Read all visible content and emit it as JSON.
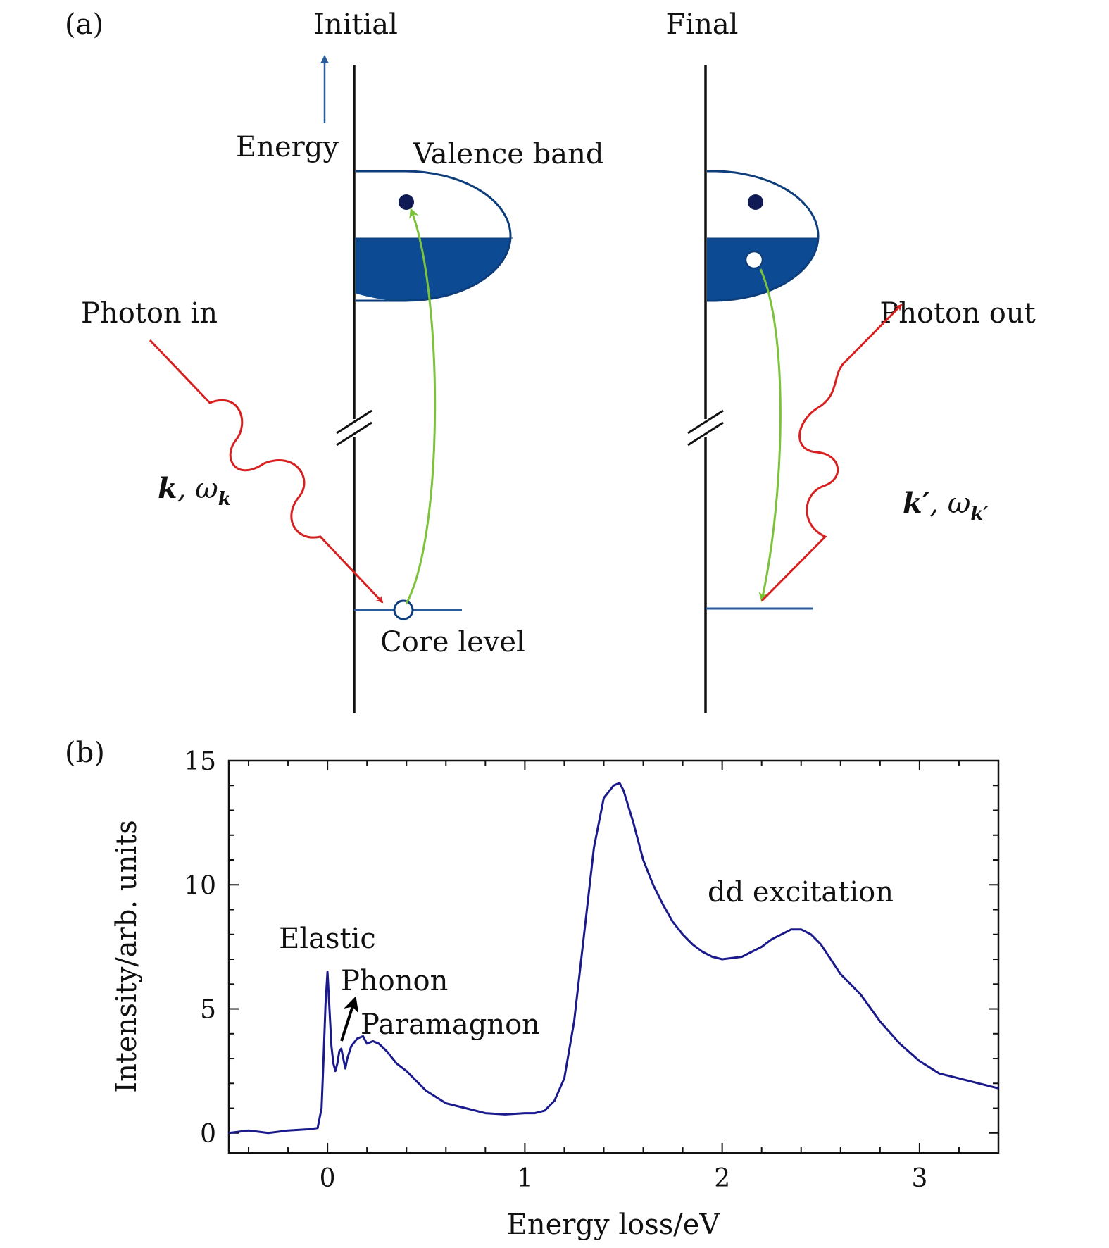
{
  "panel_a": {
    "panel_label": "(a)",
    "initial_title": "Initial",
    "final_title": "Final",
    "energy_label": "Energy",
    "valence_band_label": "Valence band",
    "core_level_label": "Core level",
    "photon_in_label": "Photon in",
    "photon_out_label": "Photon out",
    "k_in_bold": "k",
    "k_in_sep": ", ω",
    "k_in_sub": "k",
    "k_out_bold": "k′",
    "k_out_sep": ", ω",
    "k_out_sub": "k′",
    "colors": {
      "band": "#0d4a94",
      "photon": "#d82020",
      "transition": "#7cc23a",
      "axis": "#111111"
    }
  },
  "panel_b": {
    "panel_label": "(b)",
    "annotations": {
      "elastic": "Elastic",
      "phonon": "Phonon",
      "paramagnon": "Paramagnon",
      "dd": "dd excitation"
    },
    "chart_data": {
      "type": "line",
      "xlabel": "Energy loss/eV",
      "ylabel": "Intensity/arb. units",
      "xlim": [
        -0.5,
        3.4
      ],
      "ylim": [
        -0.8,
        15
      ],
      "xticks": [
        0,
        1,
        2,
        3
      ],
      "yticks": [
        0,
        5,
        10,
        15
      ],
      "grid": false,
      "line_color": "#1a1a8c",
      "series": [
        {
          "x": [
            -0.5,
            -0.4,
            -0.3,
            -0.2,
            -0.1,
            -0.05,
            -0.03,
            -0.02,
            -0.01,
            0.0,
            0.01,
            0.02,
            0.03,
            0.04,
            0.05,
            0.06,
            0.07,
            0.08,
            0.09,
            0.1,
            0.12,
            0.15,
            0.18,
            0.2,
            0.23,
            0.26,
            0.3,
            0.35,
            0.4,
            0.45,
            0.5,
            0.6,
            0.7,
            0.8,
            0.9,
            1.0,
            1.05,
            1.1,
            1.15,
            1.2,
            1.25,
            1.3,
            1.35,
            1.4,
            1.45,
            1.48,
            1.5,
            1.55,
            1.6,
            1.65,
            1.7,
            1.75,
            1.8,
            1.85,
            1.9,
            1.95,
            2.0,
            2.1,
            2.2,
            2.25,
            2.3,
            2.35,
            2.4,
            2.45,
            2.5,
            2.55,
            2.6,
            2.7,
            2.8,
            2.9,
            3.0,
            3.1,
            3.2,
            3.3,
            3.4
          ],
          "y": [
            0.0,
            0.1,
            0.0,
            0.1,
            0.15,
            0.2,
            1.0,
            3.0,
            5.2,
            6.5,
            5.0,
            3.5,
            2.8,
            2.5,
            2.8,
            3.3,
            3.4,
            3.0,
            2.6,
            3.0,
            3.5,
            3.8,
            3.9,
            3.6,
            3.7,
            3.6,
            3.3,
            2.8,
            2.5,
            2.1,
            1.7,
            1.2,
            1.0,
            0.8,
            0.75,
            0.8,
            0.8,
            0.9,
            1.3,
            2.2,
            4.5,
            8.0,
            11.5,
            13.5,
            14.0,
            14.1,
            13.8,
            12.5,
            11.0,
            10.0,
            9.2,
            8.5,
            8.0,
            7.6,
            7.3,
            7.1,
            7.0,
            7.1,
            7.5,
            7.8,
            8.0,
            8.2,
            8.2,
            8.0,
            7.6,
            7.0,
            6.4,
            5.6,
            4.5,
            3.6,
            2.9,
            2.4,
            2.2,
            2.0,
            1.8
          ]
        }
      ]
    }
  }
}
